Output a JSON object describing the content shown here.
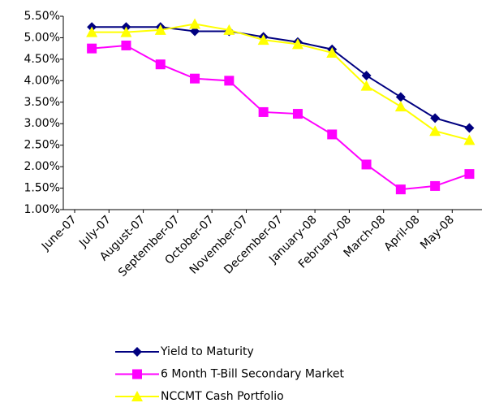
{
  "chart_data": {
    "type": "line",
    "categories": [
      "June-07",
      "July-07",
      "August-07",
      "September-07",
      "October-07",
      "November-07",
      "December-07",
      "January-08",
      "February-08",
      "March-08",
      "April-08",
      "May-08"
    ],
    "series": [
      {
        "name": "Yield to Maturity",
        "color": "#000080",
        "marker": "diamond",
        "values": [
          5.25,
          5.25,
          5.25,
          5.15,
          5.15,
          5.02,
          4.9,
          4.73,
          4.12,
          3.62,
          3.13,
          2.9
        ]
      },
      {
        "name": "6 Month T-Bill Secondary Market",
        "color": "#ff00ff",
        "marker": "square",
        "values": [
          4.75,
          4.82,
          4.38,
          4.05,
          4.0,
          3.27,
          3.23,
          2.75,
          2.05,
          1.47,
          1.55,
          1.83
        ]
      },
      {
        "name": "NCCMT Cash Portfolio",
        "color": "#ffff00",
        "marker": "triangle",
        "values": [
          5.13,
          5.13,
          5.18,
          5.32,
          5.18,
          4.95,
          4.85,
          4.65,
          3.88,
          3.4,
          2.83,
          2.62
        ]
      }
    ],
    "ylim": [
      1,
      5.5
    ],
    "yticks": [
      {
        "value": 1,
        "label": "1.00%"
      },
      {
        "value": 1.5,
        "label": "1.50%"
      },
      {
        "value": 2,
        "label": "2.00%"
      },
      {
        "value": 2.5,
        "label": "2.50%"
      },
      {
        "value": 3,
        "label": "3.00%"
      },
      {
        "value": 3.5,
        "label": "3.50%"
      },
      {
        "value": 4,
        "label": "4.00%"
      },
      {
        "value": 4.5,
        "label": "4.50%"
      },
      {
        "value": 5,
        "label": "5.00%"
      },
      {
        "value": 5.5,
        "label": "5.50%"
      }
    ],
    "legend": "bottom"
  }
}
